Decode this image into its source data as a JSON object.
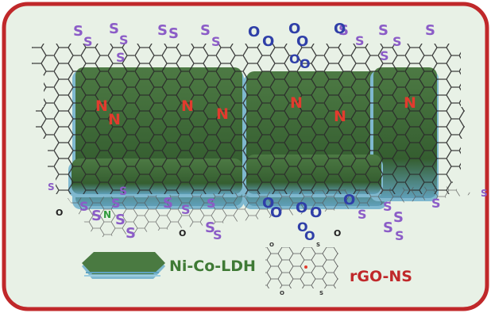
{
  "legend": {
    "ldh_label": "Ni-Co-LDH",
    "rgo_label": "rGO-NS"
  },
  "atoms": {
    "sulfur": "S",
    "oxygen": "O",
    "nitrogen": "N"
  },
  "colors": {
    "frame_border": "#c0282a",
    "background": "#e8f1e6",
    "ldh_green": "#3f6b38",
    "ldh_blue": "#7fb8cf",
    "sulfur": "#8b5cc7",
    "oxygen": "#2f3fa8",
    "nitrogen_top": "#e23b2e",
    "nitrogen_bottom": "#2f9a3b",
    "rgo_label": "#c0282a",
    "ldh_label": "#3f7a35"
  }
}
